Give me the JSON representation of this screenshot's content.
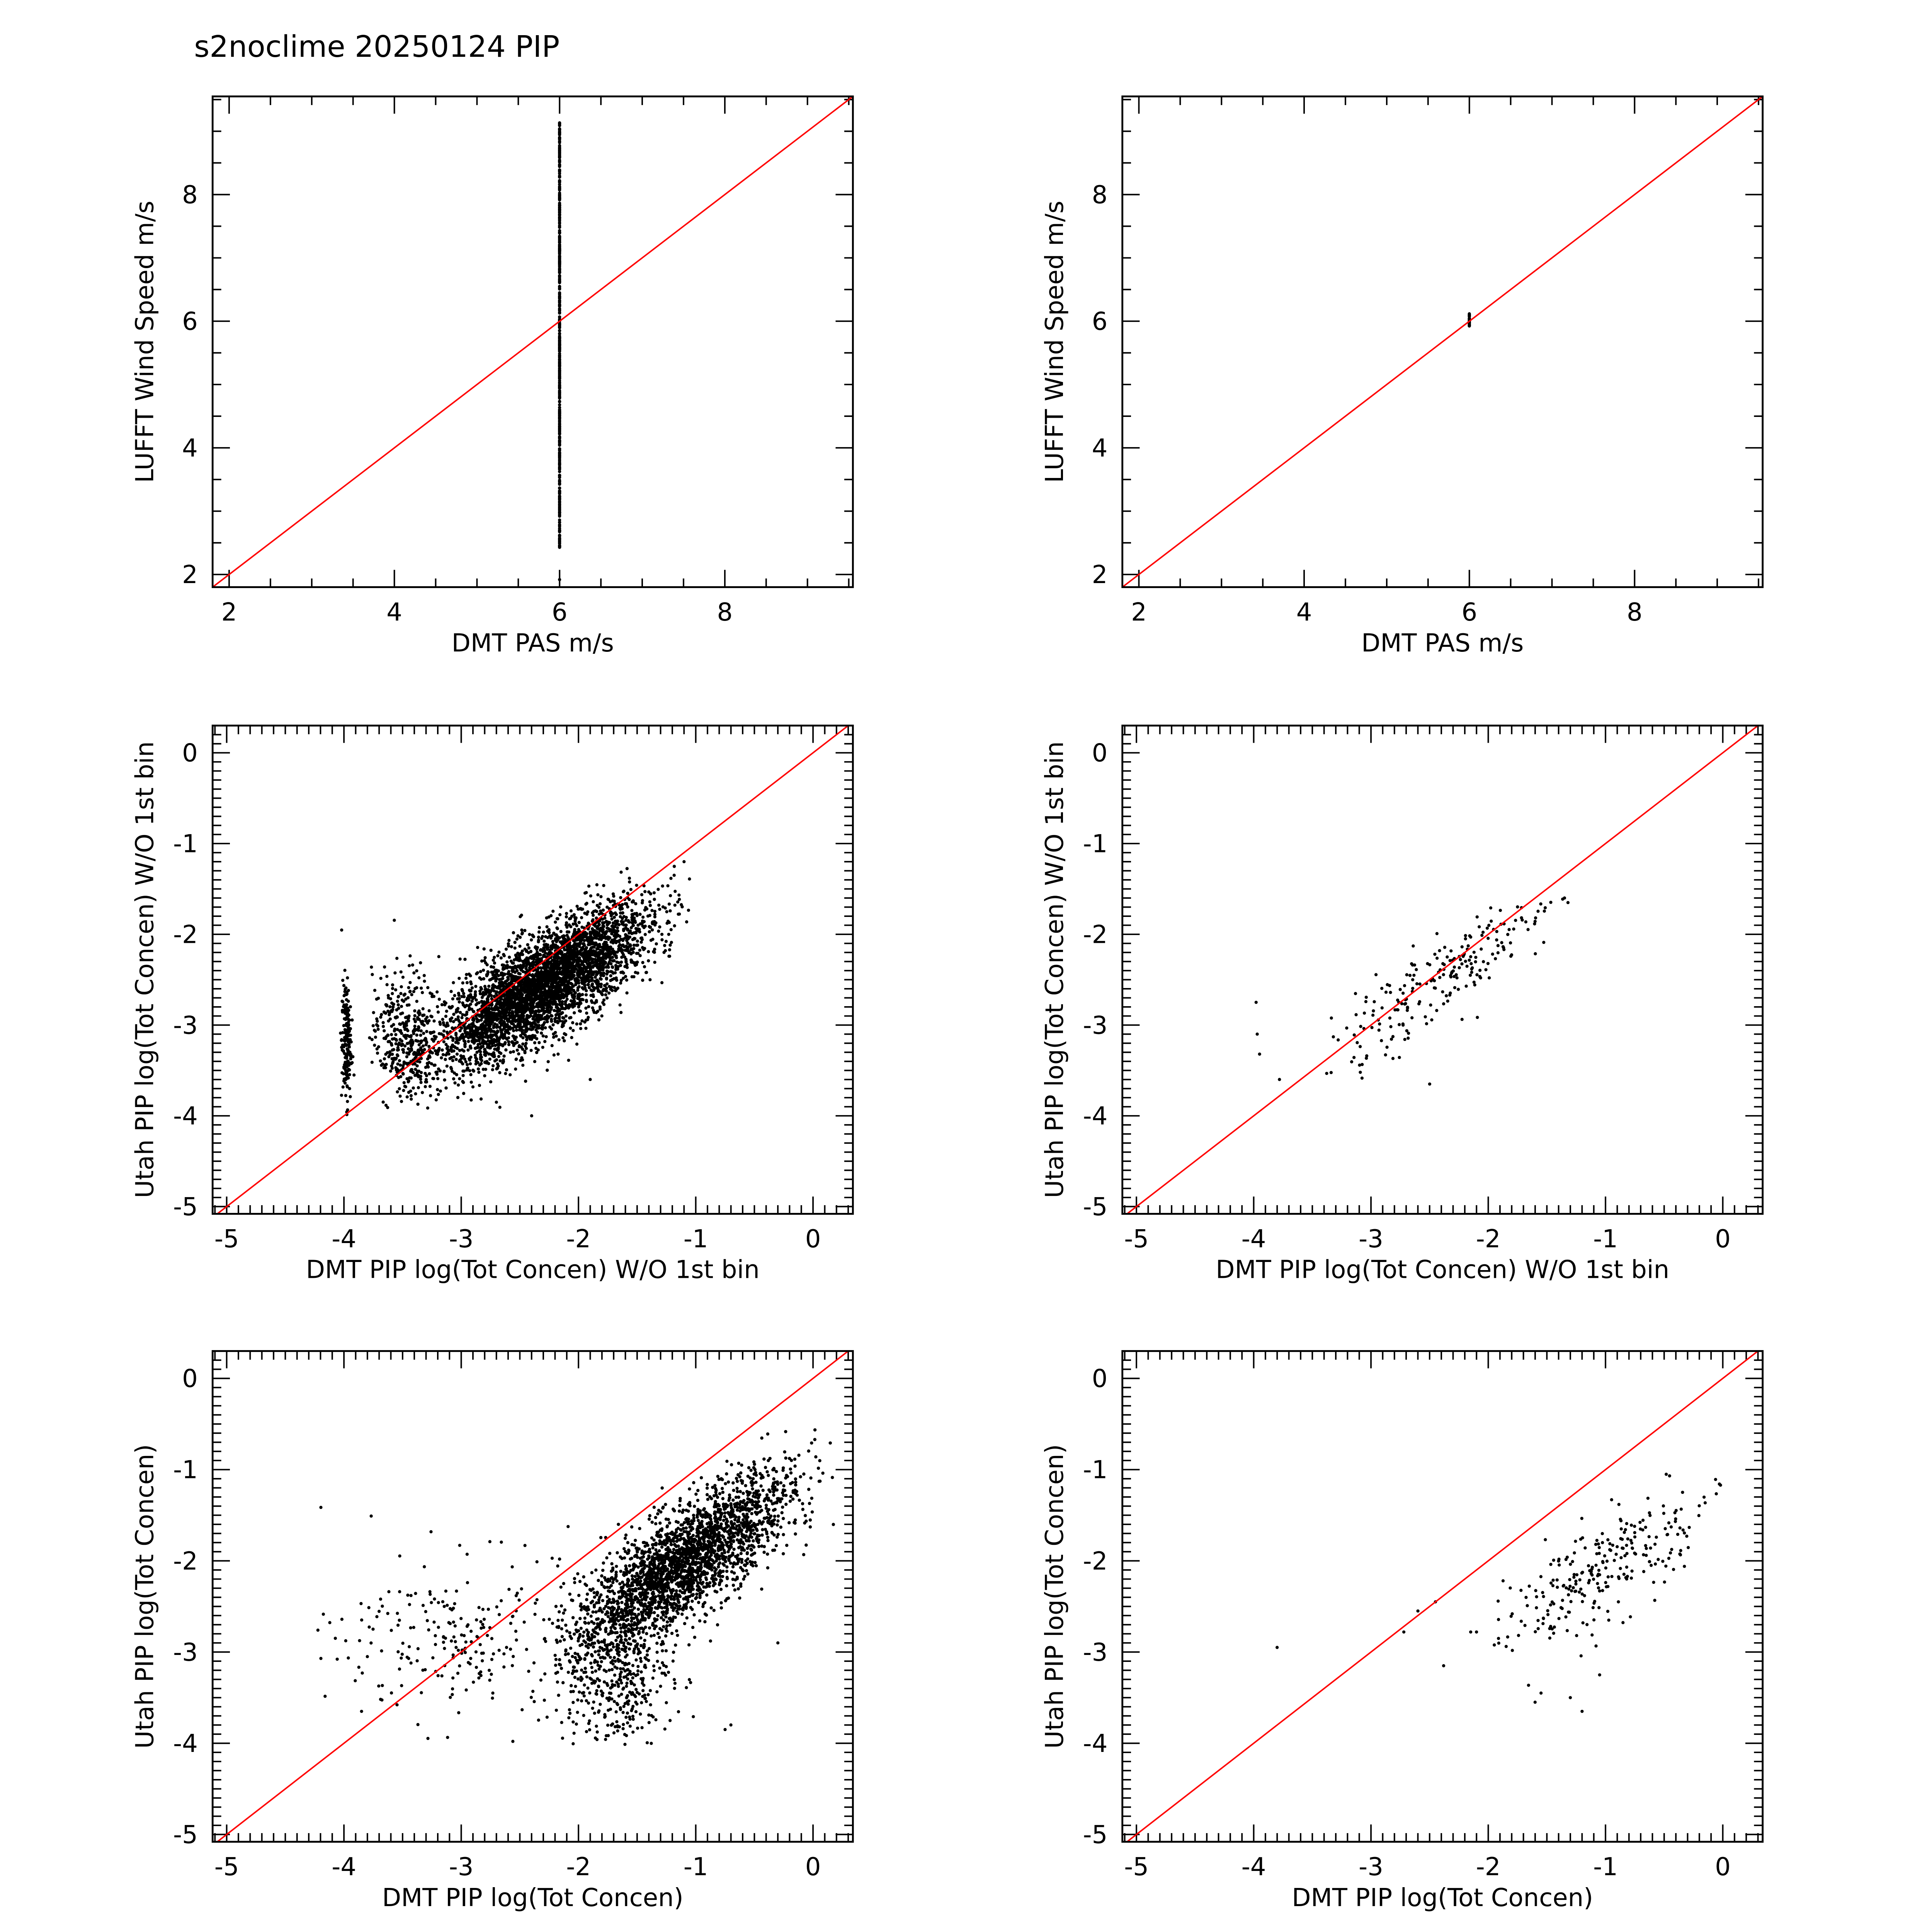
{
  "title": "s2noclime 20250124 PIP",
  "colors": {
    "points": "#000000",
    "one_to_one": "#ff0000",
    "axes": "#000000"
  },
  "chart_data": [
    {
      "type": "scatter",
      "id": "p0",
      "xlabel": "DMT PAS m/s",
      "ylabel": "LUFFT Wind Speed m/s",
      "xlim": [
        1.8,
        9.55
      ],
      "ylim": [
        1.8,
        9.55
      ],
      "xticks": [
        2,
        4,
        6,
        8
      ],
      "yticks": [
        2,
        4,
        6,
        8
      ],
      "minor": 0.5,
      "one_to_one_line": true,
      "clusters": [
        {
          "n": 500,
          "x_mean": 6,
          "x_sd": 0,
          "y_range": [
            2.4,
            9.15
          ],
          "dist": "uniform"
        }
      ],
      "points": [
        [
          6,
          1.92
        ]
      ]
    },
    {
      "type": "scatter",
      "id": "p1",
      "xlabel": "DMT PAS m/s",
      "ylabel": "LUFFT Wind Speed m/s",
      "xlim": [
        1.8,
        9.55
      ],
      "ylim": [
        1.8,
        9.55
      ],
      "xticks": [
        2,
        4,
        6,
        8
      ],
      "yticks": [
        2,
        4,
        6,
        8
      ],
      "minor": 0.5,
      "one_to_one_line": true,
      "clusters": [
        {
          "n": 30,
          "x_mean": 6,
          "x_sd": 0,
          "y_range": [
            5.92,
            6.12
          ],
          "dist": "uniform"
        }
      ],
      "points": []
    },
    {
      "type": "scatter",
      "id": "p2",
      "xlabel": "DMT PIP log(Tot Concen) W/O 1st bin",
      "ylabel": "Utah PIP log(Tot Concen) W/O 1st bin",
      "xlim": [
        -5.12,
        0.34
      ],
      "ylim": [
        -5.08,
        0.3
      ],
      "xticks": [
        -5,
        -4,
        -3,
        -2,
        -1,
        0
      ],
      "yticks": [
        -5,
        -4,
        -3,
        -2,
        -1,
        0
      ],
      "minor": 0.1,
      "one_to_one_line": true,
      "clusters": [
        {
          "n": 4500,
          "x_mean": -2.3,
          "x_sd": 0.45,
          "slope": 0.75,
          "intercept": -0.85,
          "y_sd": 0.28,
          "x_clip": [
            -3.5,
            -1.05
          ]
        },
        {
          "n": 180,
          "x_mean": -3.98,
          "x_sd": 0.02,
          "y_mean": -3.2,
          "y_sd": 0.35
        },
        {
          "n": 160,
          "x_mean": -3.6,
          "x_sd": 0.08,
          "y_mean": -3.1,
          "y_sd": 0.35
        },
        {
          "n": 200,
          "x_mean": -3.4,
          "x_sd": 0.08,
          "y_mean": -3.1,
          "y_sd": 0.35
        }
      ],
      "points": [
        [
          -2.7,
          -3.85
        ],
        [
          -1.9,
          -3.6
        ],
        [
          -2.4,
          -4.0
        ],
        [
          -1.1,
          -1.2
        ]
      ]
    },
    {
      "type": "scatter",
      "id": "p3",
      "xlabel": "DMT PIP log(Tot Concen) W/O 1st bin",
      "ylabel": "Utah PIP log(Tot Concen) W/O 1st bin",
      "xlim": [
        -5.12,
        0.34
      ],
      "ylim": [
        -5.08,
        0.3
      ],
      "xticks": [
        -5,
        -4,
        -3,
        -2,
        -1,
        0
      ],
      "yticks": [
        -5,
        -4,
        -3,
        -2,
        -1,
        0
      ],
      "minor": 0.1,
      "one_to_one_line": true,
      "clusters": [
        {
          "n": 220,
          "x_mean": -2.4,
          "x_sd": 0.5,
          "slope": 0.85,
          "intercept": -0.45,
          "y_sd": 0.22,
          "x_clip": [
            -3.4,
            -1.32
          ]
        }
      ],
      "points": [
        [
          -3.98,
          -2.75
        ],
        [
          -3.97,
          -3.1
        ],
        [
          -3.95,
          -3.32
        ],
        [
          -3.78,
          -3.6
        ],
        [
          -2.5,
          -3.65
        ],
        [
          -1.32,
          -1.65
        ],
        [
          -1.35,
          -1.6
        ]
      ]
    },
    {
      "type": "scatter",
      "id": "p4",
      "xlabel": "DMT PIP log(Tot Concen)",
      "ylabel": "Utah PIP log(Tot Concen)",
      "xlim": [
        -5.12,
        0.34
      ],
      "ylim": [
        -5.08,
        0.3
      ],
      "xticks": [
        -5,
        -4,
        -3,
        -2,
        -1,
        0
      ],
      "yticks": [
        -5,
        -4,
        -3,
        -2,
        -1,
        0
      ],
      "minor": 0.1,
      "one_to_one_line": true,
      "clusters": [
        {
          "n": 5000,
          "x_mean": -1.1,
          "x_sd": 0.45,
          "slope": 0.85,
          "intercept": -1.1,
          "y_sd": 0.3,
          "x_clip": [
            -2.2,
            0.3
          ]
        },
        {
          "n": 350,
          "x_mean": -1.7,
          "x_sd": 0.25,
          "y_mean": -3.3,
          "y_sd": 0.35
        },
        {
          "n": 250,
          "x_mean": -2.9,
          "x_sd": 0.55,
          "y_mean": -2.85,
          "y_sd": 0.45
        }
      ],
      "points": [
        [
          -0.3,
          -2.9
        ],
        [
          -0.75,
          -3.85
        ],
        [
          -0.7,
          -3.8
        ],
        [
          -3.8,
          -3.05
        ],
        [
          -3.85,
          -3.65
        ]
      ]
    },
    {
      "type": "scatter",
      "id": "p5",
      "xlabel": "DMT PIP log(Tot Concen)",
      "ylabel": "Utah PIP log(Tot Concen)",
      "xlim": [
        -5.12,
        0.34
      ],
      "ylim": [
        -5.08,
        0.3
      ],
      "xticks": [
        -5,
        -4,
        -3,
        -2,
        -1,
        0
      ],
      "yticks": [
        -5,
        -4,
        -3,
        -2,
        -1,
        0
      ],
      "minor": 0.1,
      "one_to_one_line": true,
      "clusters": [
        {
          "n": 260,
          "x_mean": -1.0,
          "x_sd": 0.5,
          "slope": 0.75,
          "intercept": -1.35,
          "y_sd": 0.28,
          "x_clip": [
            -2.0,
            0.0
          ]
        }
      ],
      "points": [
        [
          -3.8,
          -2.95
        ],
        [
          -2.72,
          -2.78
        ],
        [
          -2.6,
          -2.55
        ],
        [
          -2.45,
          -2.45
        ],
        [
          -2.38,
          -3.15
        ],
        [
          -2.15,
          -2.78
        ],
        [
          -2.1,
          -2.78
        ],
        [
          -1.6,
          -3.55
        ],
        [
          -1.55,
          -3.45
        ],
        [
          -1.3,
          -3.5
        ],
        [
          -1.2,
          -3.65
        ],
        [
          -1.05,
          -3.25
        ]
      ]
    }
  ]
}
